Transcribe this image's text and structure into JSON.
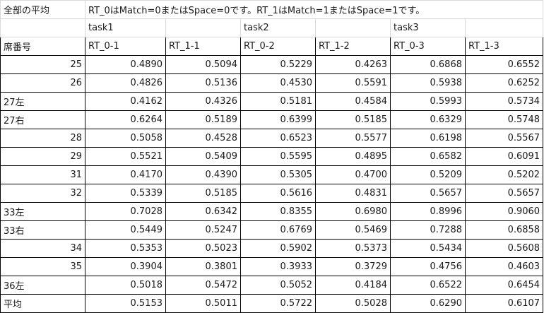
{
  "top": {
    "label": "全部の平均",
    "note": "RT_0はMatch=0またはSpace=0です。RT_1はMatch=1またはSpace=1です。"
  },
  "tasks": [
    "task1",
    "task2",
    "task3"
  ],
  "header": [
    "席番号",
    "RT_0-1",
    "RT_1-1",
    "RT_0-2",
    "RT_1-2",
    "RT_0-3",
    "RT_1-3"
  ],
  "rows": [
    {
      "seat": "25",
      "seat_align": "right",
      "values": [
        "0.4890",
        "0.5094",
        "0.5229",
        "0.4263",
        "0.6868",
        "0.6552"
      ]
    },
    {
      "seat": "26",
      "seat_align": "right",
      "values": [
        "0.4826",
        "0.5136",
        "0.4530",
        "0.5591",
        "0.5938",
        "0.6252"
      ]
    },
    {
      "seat": "27左",
      "seat_align": "left",
      "values": [
        "0.4162",
        "0.4326",
        "0.5181",
        "0.4584",
        "0.5993",
        "0.5734"
      ]
    },
    {
      "seat": "27右",
      "seat_align": "left",
      "values": [
        "0.6264",
        "0.5189",
        "0.6399",
        "0.5185",
        "0.6329",
        "0.5748"
      ]
    },
    {
      "seat": "28",
      "seat_align": "right",
      "values": [
        "0.5058",
        "0.4528",
        "0.6523",
        "0.5577",
        "0.6198",
        "0.5567"
      ]
    },
    {
      "seat": "29",
      "seat_align": "right",
      "values": [
        "0.5521",
        "0.5409",
        "0.5595",
        "0.4895",
        "0.6582",
        "0.6091"
      ]
    },
    {
      "seat": "31",
      "seat_align": "right",
      "values": [
        "0.4170",
        "0.4390",
        "0.5305",
        "0.4700",
        "0.5209",
        "0.5202"
      ]
    },
    {
      "seat": "32",
      "seat_align": "right",
      "values": [
        "0.5339",
        "0.5185",
        "0.5616",
        "0.4831",
        "0.5657",
        "0.5657"
      ]
    },
    {
      "seat": "33左",
      "seat_align": "left",
      "values": [
        "0.7028",
        "0.6342",
        "0.8355",
        "0.6980",
        "0.8996",
        "0.9060"
      ]
    },
    {
      "seat": "33右",
      "seat_align": "left",
      "values": [
        "0.5449",
        "0.5247",
        "0.6769",
        "0.5469",
        "0.7288",
        "0.6858"
      ]
    },
    {
      "seat": "34",
      "seat_align": "right",
      "values": [
        "0.5353",
        "0.5023",
        "0.5902",
        "0.5373",
        "0.5434",
        "0.5608"
      ]
    },
    {
      "seat": "35",
      "seat_align": "right",
      "values": [
        "0.3904",
        "0.3801",
        "0.3933",
        "0.3729",
        "0.4756",
        "0.4603"
      ]
    },
    {
      "seat": "36左",
      "seat_align": "left",
      "values": [
        "0.5018",
        "0.5472",
        "0.5052",
        "0.4184",
        "0.6522",
        "0.6454"
      ]
    },
    {
      "seat": "平均",
      "seat_align": "left",
      "values": [
        "0.5153",
        "0.5011",
        "0.5722",
        "0.5028",
        "0.6290",
        "0.6107"
      ]
    }
  ]
}
